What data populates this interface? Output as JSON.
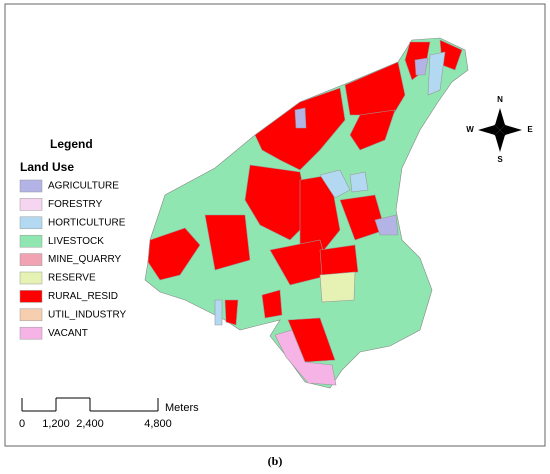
{
  "legend": {
    "title": "Legend",
    "subtitle": "Land Use",
    "items": [
      {
        "label": "AGRICULTURE",
        "color": "#b3b3e6"
      },
      {
        "label": "FORESTRY",
        "color": "#f5d5f0"
      },
      {
        "label": "HORTICULTURE",
        "color": "#b3d9f2"
      },
      {
        "label": "LIVESTOCK",
        "color": "#8fe6b0"
      },
      {
        "label": "MINE_QUARRY",
        "color": "#f2a3b3"
      },
      {
        "label": "RESERVE",
        "color": "#e6f2b3"
      },
      {
        "label": "RURAL_RESID",
        "color": "#ff0000"
      },
      {
        "label": "UTIL_INDUSTRY",
        "color": "#f5cfb0"
      },
      {
        "label": "VACANT",
        "color": "#f5b3e6"
      }
    ]
  },
  "compass": {
    "north": "N",
    "south": "S",
    "east": "E",
    "west": "W"
  },
  "scale_bar": {
    "unit": "Meters",
    "limit": [
      0,
      4800
    ],
    "ticks": [
      0,
      {
        "value": 1200,
        "label": "1,200"
      },
      {
        "value": 2400,
        "label": "2,400"
      },
      {
        "value": 4800,
        "label": "4,800"
      }
    ]
  },
  "caption": "(b)"
}
